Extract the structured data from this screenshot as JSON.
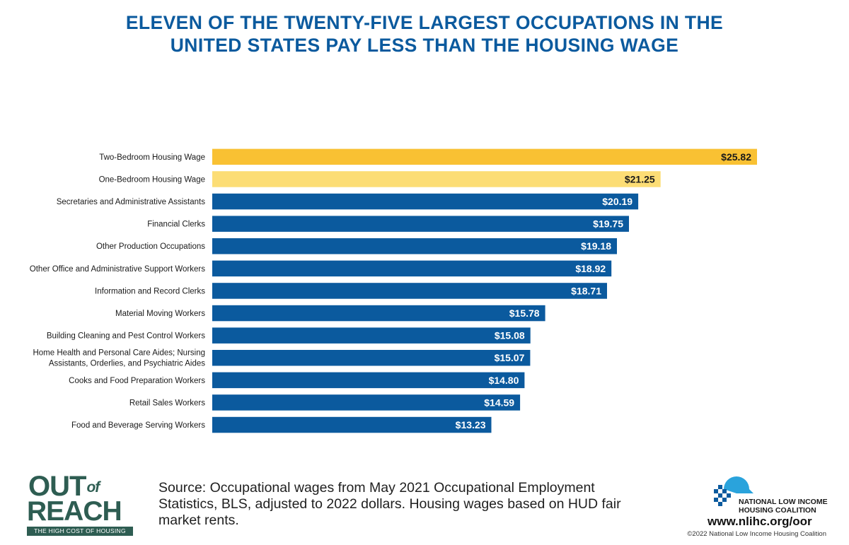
{
  "title_lines": [
    "ELEVEN OF THE TWENTY-FIVE LARGEST OCCUPATIONS IN THE",
    "UNITED STATES PAY LESS THAN THE HOUSING WAGE"
  ],
  "chart_data": {
    "type": "bar",
    "orientation": "horizontal",
    "categories": [
      "Two-Bedroom Housing Wage",
      "One-Bedroom Housing Wage",
      "Secretaries and Administrative Assistants",
      "Financial Clerks",
      "Other Production Occupations",
      "Other Office and Administrative Support Workers",
      "Information and Record Clerks",
      "Material Moving Workers",
      "Building Cleaning and Pest Control Workers",
      "Home Health and Personal Care Aides; Nursing\nAssistants, Orderlies, and Psychiatric Aides",
      "Cooks and Food Preparation Workers",
      "Retail Sales Workers",
      "Food and Beverage Serving Workers"
    ],
    "values": [
      25.82,
      21.25,
      20.19,
      19.75,
      19.18,
      18.92,
      18.71,
      15.78,
      15.08,
      15.07,
      14.8,
      14.59,
      13.23
    ],
    "value_labels": [
      "$25.82",
      "$21.25",
      "$20.19",
      "$19.75",
      "$19.18",
      "$18.92",
      "$18.71",
      "$15.78",
      "$15.08",
      "$15.07",
      "$14.80",
      "$14.59",
      "$13.23"
    ],
    "bar_colors": [
      "#f9c133",
      "#fcdd75",
      "#0b5a9e",
      "#0b5a9e",
      "#0b5a9e",
      "#0b5a9e",
      "#0b5a9e",
      "#0b5a9e",
      "#0b5a9e",
      "#0b5a9e",
      "#0b5a9e",
      "#0b5a9e",
      "#0b5a9e"
    ],
    "label_colors": [
      "#1a1a1a",
      "#1a1a1a",
      "#ffffff",
      "#ffffff",
      "#ffffff",
      "#ffffff",
      "#ffffff",
      "#ffffff",
      "#ffffff",
      "#ffffff",
      "#ffffff",
      "#ffffff",
      "#ffffff"
    ],
    "xlim": [
      0,
      25.82
    ],
    "grid": false,
    "legend": "none"
  },
  "source_text": "Source: Occupational wages from May 2021 Occupational Employment Statistics, BLS, adjusted to 2022 dollars. Housing wages based on HUD fair market rents.",
  "branding": {
    "out_line": "OUT",
    "of_word": "of",
    "reach_line": "REACH",
    "tagline": "THE HIGH COST OF HOUSING",
    "org_name_line1": "NATIONAL LOW INCOME",
    "org_name_line2": "HOUSING COALITION",
    "url": "www.nlihc.org/oor",
    "copyright": "©2022 National Low Income Housing Coalition"
  },
  "colors": {
    "title": "#0b5a9e",
    "primary_bar": "#0b5a9e",
    "two_bedroom_bar": "#f9c133",
    "one_bedroom_bar": "#fcdd75",
    "brand_green": "#2e5d52",
    "logo_blue": "#2aa3dc"
  }
}
